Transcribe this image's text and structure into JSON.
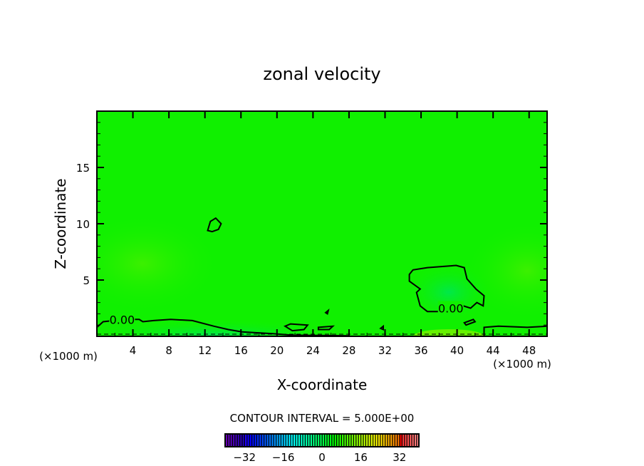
{
  "chart_data": {
    "type": "heatmap",
    "title": "zonal velocity",
    "xlabel": "X-coordinate",
    "ylabel": "Z-coordinate",
    "x_unit_left": "(×1000 m)",
    "x_unit_right": "(×1000 m)",
    "xlim": [
      0,
      50
    ],
    "ylim": [
      0,
      20
    ],
    "xticks": [
      4,
      8,
      12,
      16,
      20,
      24,
      28,
      32,
      36,
      40,
      44,
      48
    ],
    "yticks": [
      5,
      10,
      15
    ],
    "contour_interval_text": "CONTOUR INTERVAL = 5.000E+00",
    "contour_level_label": "0.00",
    "contours": [
      {
        "level": 0,
        "closed": true,
        "points": [
          [
            34.7,
            5.5
          ],
          [
            35.1,
            5.9
          ],
          [
            36.7,
            6.1
          ],
          [
            39.9,
            6.3
          ],
          [
            40.8,
            6.1
          ],
          [
            41.1,
            5.1
          ],
          [
            42.1,
            4.2
          ],
          [
            43.0,
            3.6
          ],
          [
            42.9,
            2.7
          ],
          [
            42.2,
            3.0
          ],
          [
            41.5,
            2.5
          ],
          [
            40.7,
            2.7
          ],
          [
            38.7,
            2.2
          ],
          [
            36.7,
            2.2
          ],
          [
            35.9,
            2.7
          ],
          [
            35.5,
            3.9
          ],
          [
            35.9,
            4.2
          ],
          [
            34.7,
            4.9
          ]
        ]
      },
      {
        "level": 0,
        "closed": true,
        "points": [
          [
            12.3,
            9.4
          ],
          [
            12.6,
            10.2
          ],
          [
            13.2,
            10.5
          ],
          [
            13.8,
            10.0
          ],
          [
            13.5,
            9.5
          ],
          [
            12.8,
            9.3
          ]
        ]
      },
      {
        "level": 0,
        "closed": false,
        "points": [
          [
            0,
            0.8
          ],
          [
            0.7,
            1.3
          ],
          [
            1.9,
            1.4
          ],
          [
            2.7,
            1.5
          ],
          [
            4.7,
            1.5
          ],
          [
            5.1,
            1.3
          ],
          [
            6.3,
            1.4
          ],
          [
            8.2,
            1.5
          ],
          [
            10.6,
            1.4
          ],
          [
            13,
            0.9
          ],
          [
            14.6,
            0.6
          ],
          [
            16.1,
            0.4
          ],
          [
            19.3,
            0.25
          ],
          [
            21.7,
            0.1
          ],
          [
            28,
            0.05
          ]
        ]
      },
      {
        "level": 0,
        "closed": false,
        "points": [
          [
            43,
            0
          ],
          [
            43,
            0.8
          ],
          [
            44.6,
            0.9
          ],
          [
            47.8,
            0.8
          ],
          [
            50,
            0.9
          ]
        ]
      },
      {
        "level": 0,
        "closed": true,
        "points": [
          [
            20.9,
            0.9
          ],
          [
            21.5,
            1.1
          ],
          [
            23.4,
            1.0
          ],
          [
            23.0,
            0.6
          ],
          [
            21.7,
            0.5
          ]
        ]
      },
      {
        "level": 0,
        "closed": true,
        "points": [
          [
            24.6,
            0.8
          ],
          [
            26.2,
            0.9
          ],
          [
            25.8,
            0.6
          ],
          [
            24.6,
            0.6
          ]
        ]
      },
      {
        "level": 0,
        "closed": true,
        "points": [
          [
            25.4,
            2.1
          ],
          [
            25.7,
            2.3
          ],
          [
            25.6,
            2.0
          ]
        ]
      },
      {
        "level": 0,
        "closed": true,
        "points": [
          [
            40.8,
            1.2
          ],
          [
            41.8,
            1.5
          ],
          [
            42.0,
            1.3
          ],
          [
            41.0,
            1.0
          ]
        ]
      },
      {
        "level": 0,
        "closed": true,
        "points": [
          [
            31.5,
            0.7
          ],
          [
            31.8,
            0.9
          ],
          [
            31.8,
            0.6
          ]
        ]
      }
    ],
    "label_positions": [
      [
        2.8,
        1.5
      ],
      [
        39.3,
        2.5
      ]
    ],
    "field_base_color": "#10f000",
    "colorbar": {
      "min": -40,
      "max": 40,
      "step": 1,
      "ticks": [
        -32,
        -16,
        0,
        16,
        32
      ]
    }
  }
}
